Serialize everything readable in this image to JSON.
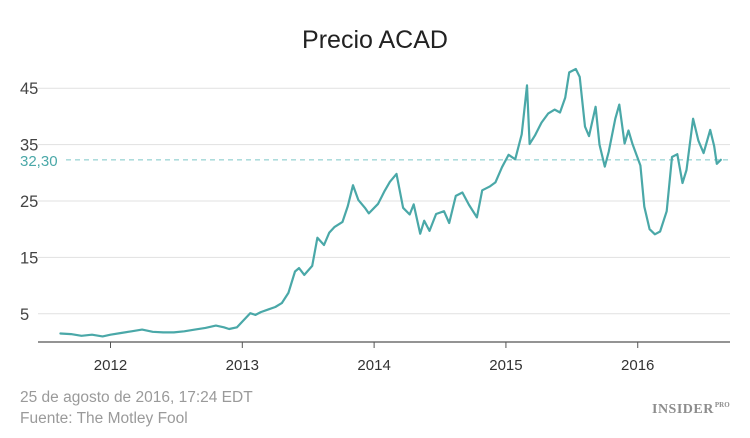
{
  "chart_data": {
    "type": "line",
    "title": "Precio ACAD",
    "xlabel": "",
    "ylabel": "",
    "x_ticks": [
      "2012",
      "2013",
      "2014",
      "2015",
      "2016"
    ],
    "y_ticks": [
      "5",
      "15",
      "25",
      "35",
      "45"
    ],
    "xlim": [
      2011.45,
      2016.7
    ],
    "ylim": [
      0,
      50
    ],
    "grid": "horizontal",
    "reference_line": {
      "value": 32.3,
      "label": "32,30"
    },
    "colors": {
      "line": "#4aa8a8",
      "reference": "#7cc6c6",
      "grid": "#e1e1e1",
      "axis": "#555555"
    },
    "series": [
      {
        "x": [
          2011.62,
          2011.7,
          2011.78,
          2011.86,
          2011.94,
          2012.0,
          2012.08,
          2012.16,
          2012.24,
          2012.32,
          2012.4,
          2012.48,
          2012.56,
          2012.64,
          2012.72,
          2012.8,
          2012.86,
          2012.9,
          2012.96,
          2013.06,
          2013.1,
          2013.14,
          2013.2,
          2013.25,
          2013.3,
          2013.35,
          2013.4,
          2013.43,
          2013.47,
          2013.53,
          2013.57,
          2013.62,
          2013.66,
          2013.7,
          2013.76,
          2013.8,
          2013.84,
          2013.88,
          2013.93,
          2013.96,
          2014.03,
          2014.08,
          2014.12,
          2014.17,
          2014.22,
          2014.27,
          2014.3,
          2014.35,
          2014.38,
          2014.42,
          2014.47,
          2014.53,
          2014.57,
          2014.62,
          2014.67,
          2014.72,
          2014.78,
          2014.82,
          2014.88,
          2014.92,
          2014.97,
          2015.02,
          2015.07,
          2015.12,
          2015.16,
          2015.18,
          2015.22,
          2015.27,
          2015.32,
          2015.37,
          2015.41,
          2015.45,
          2015.48,
          2015.53,
          2015.56,
          2015.6,
          2015.63,
          2015.68,
          2015.71,
          2015.75,
          2015.78,
          2015.83,
          2015.86,
          2015.9,
          2015.93,
          2015.96,
          2016.02,
          2016.05,
          2016.09,
          2016.13,
          2016.17,
          2016.22,
          2016.26,
          2016.3,
          2016.34,
          2016.37,
          2016.42,
          2016.46,
          2016.5,
          2016.55,
          2016.58,
          2016.6,
          2016.63
        ],
        "y": [
          1.5,
          1.4,
          1.1,
          1.3,
          1.0,
          1.3,
          1.6,
          1.9,
          2.2,
          1.8,
          1.7,
          1.7,
          1.9,
          2.2,
          2.5,
          2.9,
          2.6,
          2.3,
          2.6,
          5.1,
          4.8,
          5.3,
          5.8,
          6.2,
          6.9,
          8.7,
          12.5,
          13.1,
          11.9,
          13.5,
          18.5,
          17.2,
          19.4,
          20.4,
          21.3,
          24.1,
          27.8,
          25.2,
          23.8,
          22.8,
          24.5,
          26.8,
          28.4,
          29.8,
          23.8,
          22.6,
          24.4,
          19.2,
          21.5,
          19.7,
          22.7,
          23.2,
          21.1,
          25.9,
          26.5,
          24.3,
          22.1,
          26.9,
          27.6,
          28.3,
          31.0,
          33.2,
          32.4,
          36.8,
          45.5,
          35.1,
          36.6,
          38.9,
          40.5,
          41.2,
          40.7,
          43.3,
          47.8,
          48.4,
          47.0,
          38.2,
          36.5,
          41.7,
          35.0,
          31.1,
          33.7,
          39.6,
          42.1,
          35.2,
          37.5,
          35.1,
          31.3,
          24.0,
          20.0,
          19.1,
          19.6,
          23.2,
          32.8,
          33.3,
          28.2,
          30.5,
          39.6,
          35.7,
          33.5,
          37.6,
          34.7,
          31.6,
          32.3
        ]
      }
    ]
  },
  "footer": {
    "date": "25 de agosto de 2016, 17:24 EDT",
    "source": "Fuente: The Motley Fool"
  },
  "logo": {
    "name": "INSIDER",
    "suffix": "PRO"
  }
}
